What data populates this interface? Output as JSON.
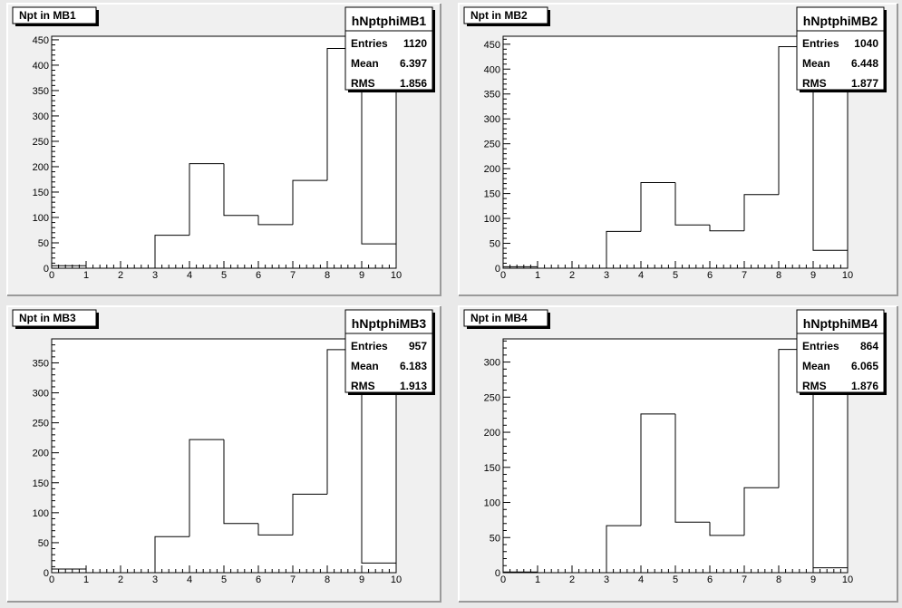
{
  "colors": {
    "canvas": "#e9e9e9",
    "pad_fill": "#f0f0f0",
    "frame_fill": "#ffffff",
    "line": "#000000"
  },
  "chart_data": [
    {
      "type": "histogram",
      "title": "Npt in MB1",
      "hist_name": "hNptphiMB1",
      "stats": {
        "entries": "1120",
        "mean": "6.397",
        "rms": "1.856"
      },
      "stats_labels": {
        "entries": "Entries",
        "mean": "Mean",
        "rms": "RMS"
      },
      "bin_edges": [
        0,
        1,
        2,
        3,
        4,
        5,
        6,
        7,
        8,
        9,
        10
      ],
      "values": [
        5,
        0,
        0,
        65,
        206,
        104,
        86,
        173,
        433,
        48
      ],
      "xlim": [
        0,
        10
      ],
      "ylim": [
        0,
        457
      ],
      "xticks": [
        0,
        1,
        2,
        3,
        4,
        5,
        6,
        7,
        8,
        9,
        10
      ],
      "yticks": [
        0,
        50,
        100,
        150,
        200,
        250,
        300,
        350,
        400,
        450
      ]
    },
    {
      "type": "histogram",
      "title": "Npt in MB2",
      "hist_name": "hNptphiMB2",
      "stats": {
        "entries": "1040",
        "mean": "6.448",
        "rms": "1.877"
      },
      "stats_labels": {
        "entries": "Entries",
        "mean": "Mean",
        "rms": "RMS"
      },
      "bin_edges": [
        0,
        1,
        2,
        3,
        4,
        5,
        6,
        7,
        8,
        9,
        10
      ],
      "values": [
        3,
        0,
        0,
        74,
        172,
        87,
        75,
        148,
        445,
        36
      ],
      "xlim": [
        0,
        10
      ],
      "ylim": [
        0,
        466
      ],
      "xticks": [
        0,
        1,
        2,
        3,
        4,
        5,
        6,
        7,
        8,
        9,
        10
      ],
      "yticks": [
        0,
        50,
        100,
        150,
        200,
        250,
        300,
        350,
        400,
        450
      ]
    },
    {
      "type": "histogram",
      "title": "Npt in MB3",
      "hist_name": "hNptphiMB3",
      "stats": {
        "entries": "957",
        "mean": "6.183",
        "rms": "1.913"
      },
      "stats_labels": {
        "entries": "Entries",
        "mean": "Mean",
        "rms": "RMS"
      },
      "bin_edges": [
        0,
        1,
        2,
        3,
        4,
        5,
        6,
        7,
        8,
        9,
        10
      ],
      "values": [
        6,
        0,
        0,
        60,
        222,
        82,
        63,
        131,
        372,
        16
      ],
      "xlim": [
        0,
        10
      ],
      "ylim": [
        0,
        390
      ],
      "xticks": [
        0,
        1,
        2,
        3,
        4,
        5,
        6,
        7,
        8,
        9,
        10
      ],
      "yticks": [
        0,
        50,
        100,
        150,
        200,
        250,
        300,
        350
      ]
    },
    {
      "type": "histogram",
      "title": "Npt in MB4",
      "hist_name": "hNptphiMB4",
      "stats": {
        "entries": "864",
        "mean": "6.065",
        "rms": "1.876"
      },
      "stats_labels": {
        "entries": "Entries",
        "mean": "Mean",
        "rms": "RMS"
      },
      "bin_edges": [
        0,
        1,
        2,
        3,
        4,
        5,
        6,
        7,
        8,
        9,
        10
      ],
      "values": [
        1,
        0,
        0,
        67,
        226,
        72,
        53,
        121,
        318,
        7
      ],
      "xlim": [
        0,
        10
      ],
      "ylim": [
        0,
        333
      ],
      "xticks": [
        0,
        1,
        2,
        3,
        4,
        5,
        6,
        7,
        8,
        9,
        10
      ],
      "yticks": [
        0,
        50,
        100,
        150,
        200,
        250,
        300
      ]
    }
  ]
}
